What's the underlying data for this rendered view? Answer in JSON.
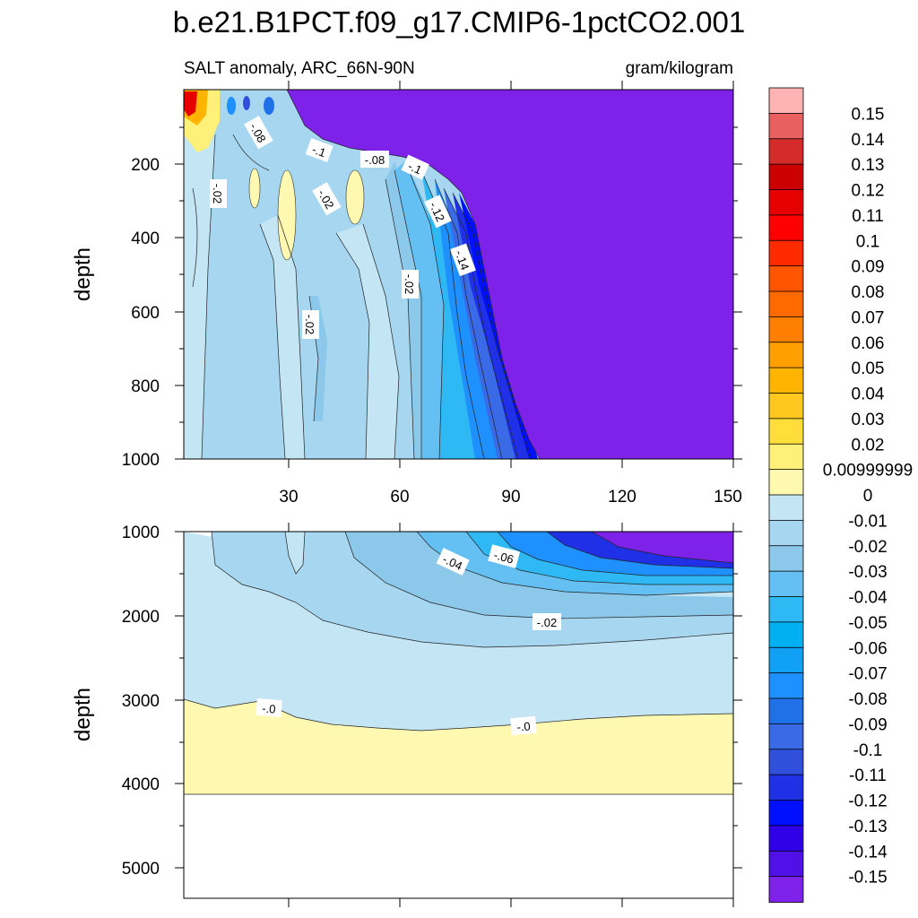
{
  "chart_data": {
    "type": "contour",
    "title": "b.e21.B1PCT.f09_g17.CMIP6-1pctCO2.001",
    "left_subtitle": "SALT anomaly, ARC_66N-90N",
    "right_subtitle": "gram/kilogram",
    "x_range": [
      0,
      151
    ],
    "x_ticks": [
      "30",
      "60",
      "90",
      "120",
      "150"
    ],
    "upper_panel": {
      "ylabel": "depth",
      "ylim": [
        0,
        1000
      ],
      "y_ticks": [
        "200",
        "400",
        "600",
        "800",
        "1000"
      ],
      "contour_labels": [
        "-.08",
        "-.1",
        "-.08",
        "-.1",
        "-.02",
        "-.02",
        "-.12",
        "-.14",
        "-.02",
        "-.02"
      ]
    },
    "lower_panel": {
      "ylabel": "depth",
      "ylim": [
        1000,
        5400
      ],
      "y_ticks": [
        "1000",
        "2000",
        "3000",
        "4000",
        "5000"
      ],
      "contour_labels": [
        "-.04",
        "-.06",
        "-.02",
        "-.0",
        "-.0"
      ]
    },
    "colorbar": {
      "labels": [
        "0.15",
        "0.14",
        "0.13",
        "0.12",
        "0.11",
        "0.1",
        "0.09",
        "0.08",
        "0.07",
        "0.06",
        "0.05",
        "0.04",
        "0.03",
        "0.02",
        "0.00999999",
        "0",
        "-0.01",
        "-0.02",
        "-0.03",
        "-0.04",
        "-0.05",
        "-0.06",
        "-0.07",
        "-0.08",
        "-0.09",
        "-0.1",
        "-0.11",
        "-0.12",
        "-0.13",
        "-0.14",
        "-0.15"
      ],
      "colors": [
        "#FFB3B3",
        "#E86060",
        "#D42A2A",
        "#CC0000",
        "#E60000",
        "#FF0000",
        "#FF2A00",
        "#FF5500",
        "#FF6A00",
        "#FF8000",
        "#FFA000",
        "#FFB400",
        "#FFC81E",
        "#FFDE3C",
        "#FFF07A",
        "#FFF8B0",
        "#C4E6F4",
        "#A6D6F0",
        "#8CC8EA",
        "#64C0F2",
        "#2EB8F4",
        "#00B0F0",
        "#10A0F4",
        "#1E90FF",
        "#2070E8",
        "#3A6AE6",
        "#3050DC",
        "#2030E6",
        "#0010FF",
        "#3000E8",
        "#5010E8",
        "#7E22EA"
      ]
    }
  }
}
